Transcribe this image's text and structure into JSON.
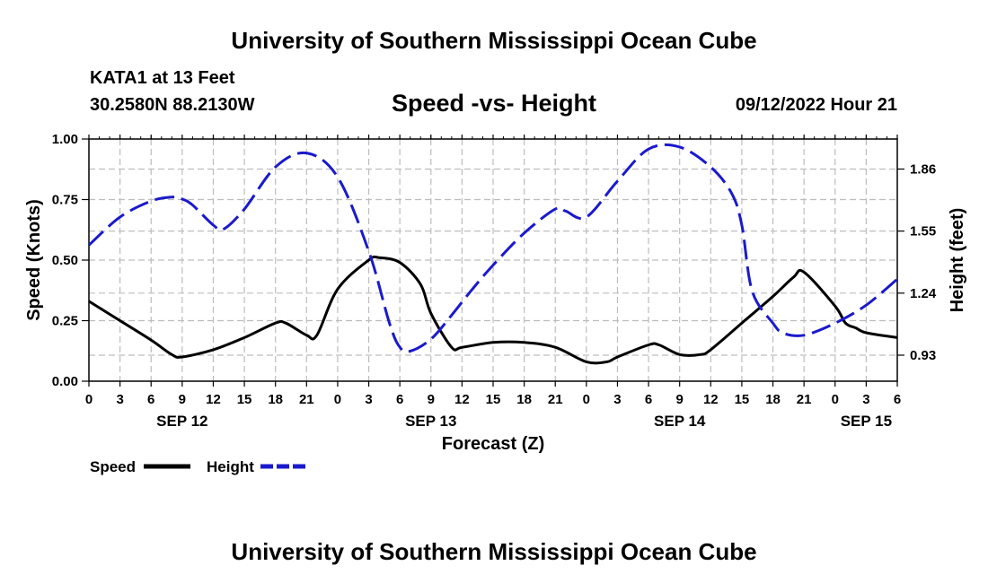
{
  "header": {
    "title": "University of Southern Mississippi Ocean Cube",
    "station": "KATA1 at 13 Feet",
    "coordinates": "30.2580N  88.2130W",
    "chart_title": "Speed -vs- Height",
    "datetime": "09/12/2022 Hour 21"
  },
  "footer": {
    "title": "University of Southern Mississippi Ocean Cube"
  },
  "legend": {
    "speed_label": "Speed",
    "height_label": "Height",
    "speed_color": "#000000",
    "height_color": "#1a1acc"
  },
  "chart_data": {
    "type": "line",
    "title": "Speed -vs- Height",
    "xlabel": "Forecast (Z)",
    "ylabel": "Speed (Knots)",
    "y2label": "Height (feet)",
    "xlim": [
      0,
      78
    ],
    "ylim": [
      0,
      1
    ],
    "y2lim": [
      0.8,
      2.01
    ],
    "x_tick_values": [
      0,
      3,
      6,
      9,
      12,
      15,
      18,
      21,
      24,
      27,
      30,
      33,
      36,
      39,
      42,
      45,
      48,
      51,
      54,
      57,
      60,
      63,
      66,
      69,
      72,
      75,
      78
    ],
    "x_tick_labels": [
      "0",
      "3",
      "6",
      "9",
      "12",
      "15",
      "18",
      "21",
      "0",
      "3",
      "6",
      "9",
      "12",
      "15",
      "18",
      "21",
      "0",
      "3",
      "6",
      "9",
      "12",
      "15",
      "18",
      "21",
      "0",
      "3",
      "6"
    ],
    "day_labels": [
      {
        "x": 9,
        "label": "SEP 12"
      },
      {
        "x": 33,
        "label": "SEP 13"
      },
      {
        "x": 57,
        "label": "SEP 14"
      },
      {
        "x": 75,
        "label": "SEP 15"
      }
    ],
    "y_ticks": [
      {
        "value": 0,
        "label": "0.00"
      },
      {
        "value": 0.25,
        "label": "0.25"
      },
      {
        "value": 0.5,
        "label": "0.50"
      },
      {
        "value": 0.75,
        "label": "0.75"
      },
      {
        "value": 1,
        "label": "1.00"
      }
    ],
    "y2_ticks": [
      {
        "value": 0.93,
        "label": "0.93"
      },
      {
        "value": 1.24,
        "label": "1.24"
      },
      {
        "value": 1.55,
        "label": "1.55"
      },
      {
        "value": 1.86,
        "label": "1.86"
      }
    ],
    "series": [
      {
        "name": "Speed",
        "axis": "left",
        "color": "#000000",
        "dash": "solid",
        "x": [
          0,
          3,
          6,
          8,
          9,
          12,
          15,
          18,
          19,
          21,
          22,
          24,
          27,
          28,
          30,
          32,
          33,
          35,
          36,
          39,
          42,
          45,
          48,
          50,
          51,
          54,
          55,
          57,
          59,
          60,
          63,
          66,
          68,
          69,
          72,
          73,
          74,
          75,
          78
        ],
        "y": [
          0.33,
          0.25,
          0.17,
          0.11,
          0.1,
          0.13,
          0.18,
          0.24,
          0.24,
          0.19,
          0.19,
          0.38,
          0.5,
          0.51,
          0.49,
          0.4,
          0.28,
          0.14,
          0.14,
          0.16,
          0.16,
          0.14,
          0.08,
          0.08,
          0.1,
          0.15,
          0.15,
          0.11,
          0.11,
          0.13,
          0.24,
          0.35,
          0.43,
          0.45,
          0.31,
          0.24,
          0.22,
          0.2,
          0.18
        ]
      },
      {
        "name": "Height",
        "axis": "right",
        "color": "#1a1acc",
        "dash": "dashed",
        "x": [
          0,
          3,
          6,
          8,
          9,
          10,
          12,
          13,
          15,
          18,
          21,
          24,
          27,
          29,
          30,
          31,
          33,
          35,
          37,
          39,
          42,
          45,
          46,
          48,
          51,
          54,
          57,
          60,
          62,
          63,
          64,
          66,
          67,
          69,
          72,
          75,
          78
        ],
        "y": [
          1.48,
          1.62,
          1.7,
          1.72,
          1.71,
          1.68,
          1.58,
          1.56,
          1.66,
          1.87,
          1.94,
          1.82,
          1.45,
          1.09,
          0.97,
          0.95,
          1.01,
          1.13,
          1.26,
          1.38,
          1.54,
          1.66,
          1.65,
          1.62,
          1.8,
          1.96,
          1.97,
          1.87,
          1.74,
          1.58,
          1.25,
          1.09,
          1.04,
          1.03,
          1.09,
          1.18,
          1.31
        ]
      }
    ]
  }
}
